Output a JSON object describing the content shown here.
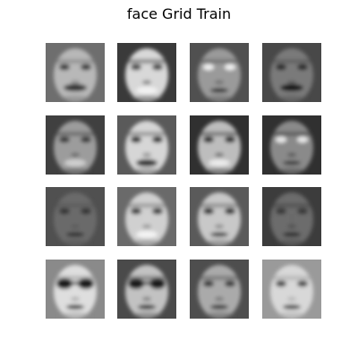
{
  "figure": {
    "title": "face Grid Train"
  },
  "grid": {
    "rows": 4,
    "cols": 4,
    "colormap": "gray",
    "faces": [
      {
        "r": 0,
        "c": 0,
        "bg": "#6e6e6e",
        "skin": "#b8b8b8",
        "eyes": "#3a3a3a",
        "mouth": "#303030",
        "feature": "mustache"
      },
      {
        "r": 0,
        "c": 1,
        "bg": "#3a3a3a",
        "skin": "#d8d8d8",
        "eyes": "#4a4a4a",
        "mouth": "#f2f2f2",
        "feature": "smile"
      },
      {
        "r": 0,
        "c": 2,
        "bg": "#505050",
        "skin": "#9a9a9a",
        "eyes": "#f0f0f0",
        "mouth": "#2c2c2c",
        "feature": "plain"
      },
      {
        "r": 0,
        "c": 3,
        "bg": "#484848",
        "skin": "#7a7a7a",
        "eyes": "#2a2a2a",
        "mouth": "#141414",
        "feature": "mustache"
      },
      {
        "r": 1,
        "c": 0,
        "bg": "#404040",
        "skin": "#9c9c9c",
        "eyes": "#3a3a3a",
        "mouth": "#cfcfcf",
        "feature": "smile"
      },
      {
        "r": 1,
        "c": 1,
        "bg": "#5a5a5a",
        "skin": "#d6d6d6",
        "eyes": "#2a2a2a",
        "mouth": "#303030",
        "feature": "smile"
      },
      {
        "r": 1,
        "c": 2,
        "bg": "#303030",
        "skin": "#bdbdbd",
        "eyes": "#2a2a2a",
        "mouth": "#eaeaea",
        "feature": "smile"
      },
      {
        "r": 1,
        "c": 3,
        "bg": "#303030",
        "skin": "#8a8a8a",
        "eyes": "#e8e8e8",
        "mouth": "#3a3a3a",
        "feature": "plain"
      },
      {
        "r": 2,
        "c": 0,
        "bg": "#505050",
        "skin": "#6a6a6a",
        "eyes": "#363636",
        "mouth": "#2e2e2e",
        "feature": "plain"
      },
      {
        "r": 2,
        "c": 1,
        "bg": "#6a6a6a",
        "skin": "#d0d0d0",
        "eyes": "#3a3a3a",
        "mouth": "#f4f4f4",
        "feature": "smile"
      },
      {
        "r": 2,
        "c": 2,
        "bg": "#5a5a5a",
        "skin": "#c8c8c8",
        "eyes": "#2e2e2e",
        "mouth": "#3a3a3a",
        "feature": "plain"
      },
      {
        "r": 2,
        "c": 3,
        "bg": "#3c3c3c",
        "skin": "#6c6c6c",
        "eyes": "#383838",
        "mouth": "#2a2a2a",
        "feature": "plain"
      },
      {
        "r": 3,
        "c": 0,
        "bg": "#8a8a8a",
        "skin": "#dedede",
        "eyes": "#1e1e1e",
        "mouth": "#2a2a2a",
        "feature": "glasses"
      },
      {
        "r": 3,
        "c": 1,
        "bg": "#4a4a4a",
        "skin": "#c2c2c2",
        "eyes": "#1a1a1a",
        "mouth": "#1e1e1e",
        "feature": "glasses"
      },
      {
        "r": 3,
        "c": 2,
        "bg": "#4e4e4e",
        "skin": "#aaaaaa",
        "eyes": "#3a3a3a",
        "mouth": "#2e2e2e",
        "feature": "plain"
      },
      {
        "r": 3,
        "c": 3,
        "bg": "#9a9a9a",
        "skin": "#d8d8d8",
        "eyes": "#4a4a4a",
        "mouth": "#3a3a3a",
        "feature": "plain"
      }
    ]
  }
}
